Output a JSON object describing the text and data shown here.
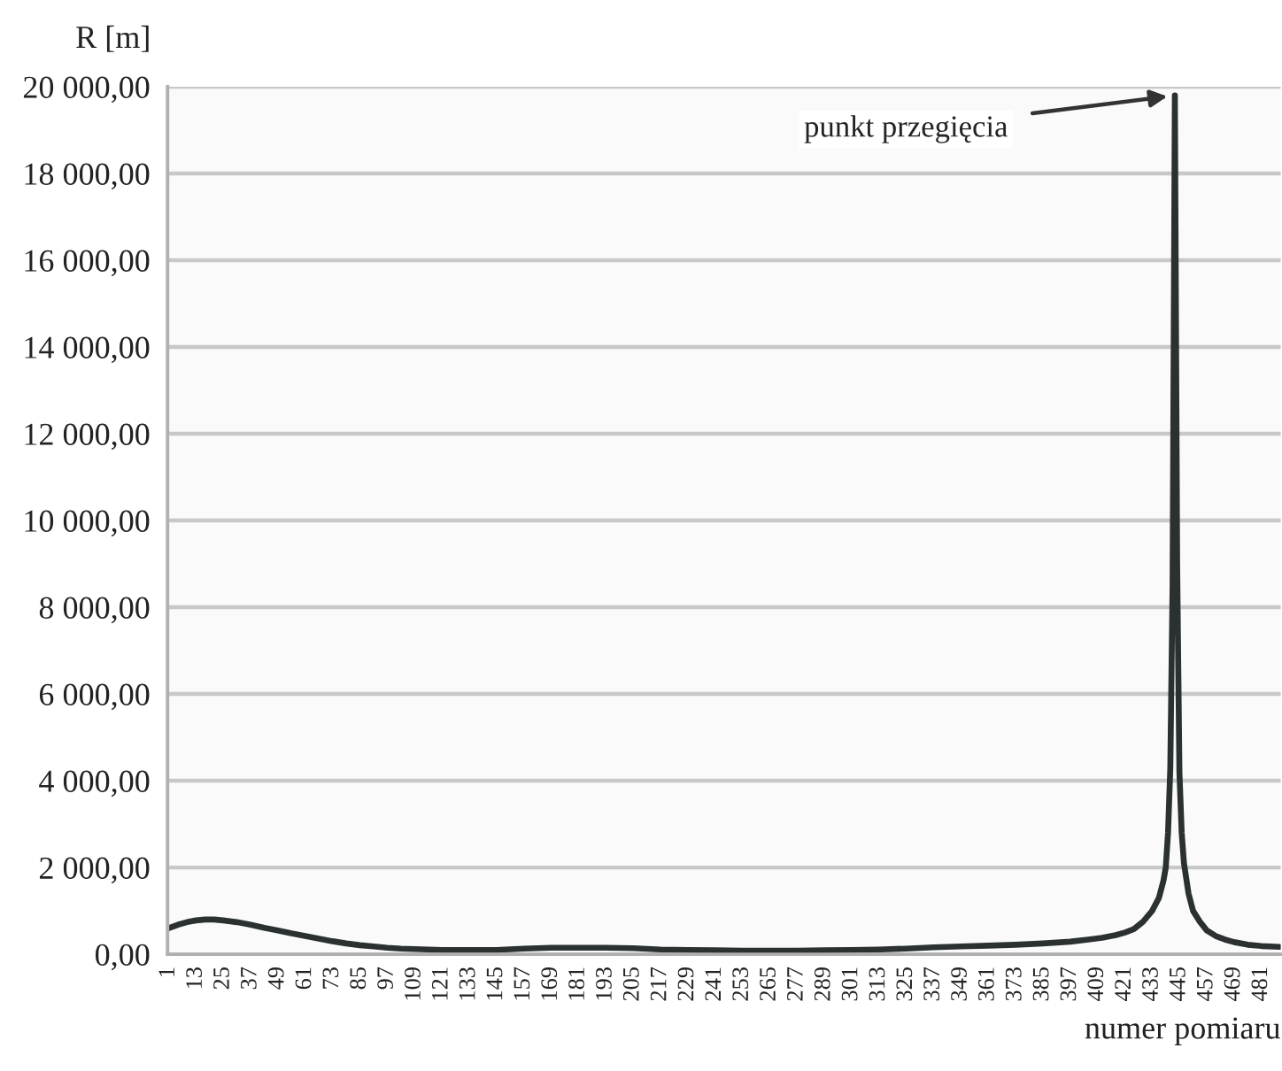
{
  "chart_data": {
    "type": "line",
    "xlabel": "numer pomiaru",
    "ylabel": "R [m]",
    "x": [
      1,
      5,
      9,
      13,
      17,
      21,
      25,
      31,
      37,
      43,
      49,
      55,
      61,
      67,
      73,
      79,
      85,
      91,
      97,
      103,
      109,
      121,
      133,
      145,
      157,
      169,
      181,
      193,
      205,
      217,
      229,
      241,
      253,
      265,
      277,
      289,
      301,
      313,
      325,
      337,
      349,
      361,
      373,
      385,
      397,
      405,
      411,
      417,
      421,
      425,
      429,
      433,
      436,
      438,
      439,
      440,
      441,
      442,
      443,
      444,
      445,
      446,
      447,
      449,
      451,
      454,
      457,
      461,
      465,
      469,
      475,
      481,
      489
    ],
    "series": [
      {
        "color": "#2b3030",
        "values": [
          600,
          680,
          740,
          780,
          800,
          800,
          780,
          740,
          680,
          610,
          550,
          480,
          420,
          360,
          300,
          250,
          210,
          180,
          150,
          130,
          120,
          100,
          100,
          100,
          130,
          150,
          150,
          150,
          140,
          110,
          100,
          90,
          80,
          80,
          80,
          90,
          100,
          110,
          130,
          160,
          180,
          200,
          220,
          250,
          290,
          340,
          380,
          440,
          500,
          580,
          750,
          1000,
          1300,
          1700,
          2000,
          2800,
          4300,
          8500,
          19800,
          9000,
          4200,
          2800,
          2100,
          1400,
          1000,
          750,
          550,
          420,
          340,
          280,
          220,
          190,
          170
        ]
      }
    ],
    "xlim": [
      0.5,
      489.5
    ],
    "xticks": [
      1,
      13,
      25,
      37,
      49,
      61,
      73,
      85,
      97,
      109,
      121,
      133,
      145,
      157,
      169,
      181,
      193,
      205,
      217,
      229,
      241,
      253,
      265,
      277,
      289,
      301,
      313,
      325,
      337,
      349,
      361,
      373,
      385,
      397,
      409,
      421,
      433,
      445,
      457,
      469,
      481
    ],
    "ylim": [
      0,
      20000
    ],
    "yticks": [
      {
        "value": 0,
        "label": "0,00"
      },
      {
        "value": 2000,
        "label": "2 000,00"
      },
      {
        "value": 4000,
        "label": "4 000,00"
      },
      {
        "value": 6000,
        "label": "6 000,00"
      },
      {
        "value": 8000,
        "label": "8 000,00"
      },
      {
        "value": 10000,
        "label": "10 000,00"
      },
      {
        "value": 12000,
        "label": "12 000,00"
      },
      {
        "value": 14000,
        "label": "14 000,00"
      },
      {
        "value": 16000,
        "label": "16 000,00"
      },
      {
        "value": 18000,
        "label": "18 000,00"
      },
      {
        "value": 20000,
        "label": "20 000,00"
      }
    ],
    "grid": "y",
    "annotations": [
      {
        "text": "punkt przegięcia",
        "x": 443,
        "y": 19800
      }
    ]
  }
}
